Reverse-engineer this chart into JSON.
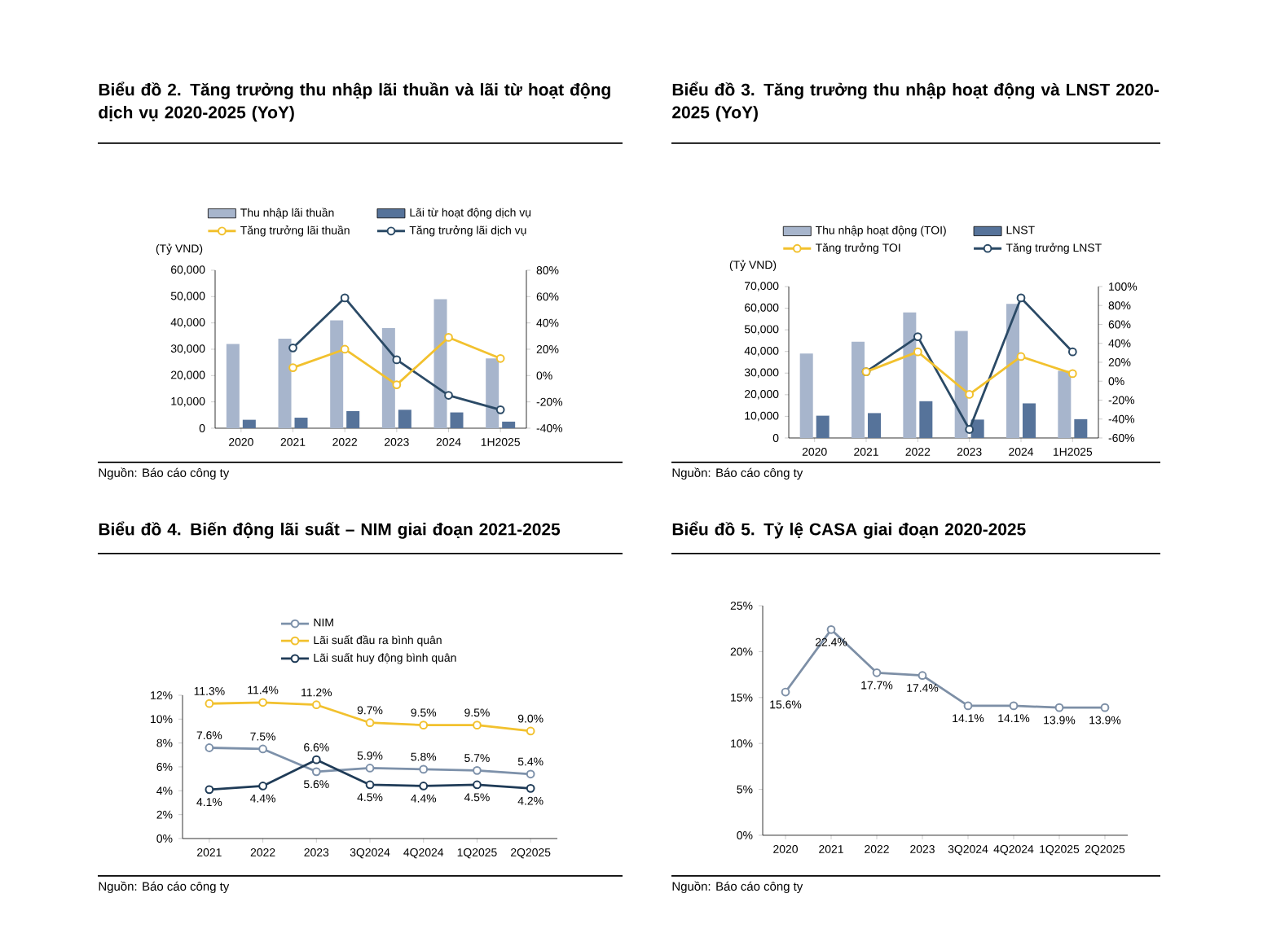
{
  "chart_data": [
    {
      "type": "bar",
      "title": "Biểu đồ 2. Tăng trưởng thu nhập lãi thuần và lãi từ hoạt động dịch vụ 2020-2025 (YoY)",
      "ylabel": "(Tỷ VND)",
      "categories": [
        "2020",
        "2021",
        "2022",
        "2023",
        "2024",
        "1H2025"
      ],
      "series": [
        {
          "name": "Thu nhập lãi thuần",
          "color": "#a7b5cc",
          "values": [
            32000,
            34000,
            41000,
            38000,
            49000,
            26500
          ]
        },
        {
          "name": "Lãi từ hoạt động dịch vụ",
          "color": "#56739a",
          "values": [
            3200,
            4000,
            6500,
            7000,
            6000,
            2500
          ]
        },
        {
          "name": "Tăng trưởng lãi thuần",
          "type": "line",
          "axis": "y2",
          "color": "#f2c12e",
          "values": [
            null,
            6,
            20,
            -7,
            29,
            13
          ]
        },
        {
          "name": "Tăng trưởng lãi dịch vụ",
          "type": "line",
          "axis": "y2",
          "color": "#2b4a66",
          "values": [
            null,
            21,
            59,
            12,
            -15,
            -26
          ]
        }
      ],
      "ylim": [
        0,
        60000
      ],
      "yticks": [
        0,
        {
          "value": 10000,
          "label": "10,000"
        },
        {
          "value": 20000,
          "label": "20,000"
        },
        {
          "value": 30000,
          "label": "30,000"
        },
        {
          "value": 40000,
          "label": "40,000"
        },
        {
          "value": 50000,
          "label": "50,000"
        },
        {
          "value": 60000,
          "label": "60,000"
        }
      ],
      "y2lim": [
        -40,
        80
      ],
      "y2ticks": [
        {
          "value": -40,
          "label": "-40%"
        },
        {
          "value": -20,
          "label": "-20%"
        },
        {
          "value": 0,
          "label": "0%"
        },
        {
          "value": 20,
          "label": "20%"
        },
        {
          "value": 40,
          "label": "40%"
        },
        {
          "value": 60,
          "label": "60%"
        },
        {
          "value": 80,
          "label": "80%"
        }
      ],
      "legend": "top",
      "marker": "circle",
      "annotations": [
        "Nguồn: Báo cáo công ty"
      ]
    },
    {
      "type": "bar",
      "title": "Biểu đồ 3. Tăng trưởng thu nhập hoạt động và LNST 2020-2025 (YoY)",
      "ylabel": "(Tỷ VND)",
      "categories": [
        "2020",
        "2021",
        "2022",
        "2023",
        "2024",
        "1H2025"
      ],
      "series": [
        {
          "name": "Thu nhập hoạt động (TOI)",
          "color": "#a7b5cc",
          "values": [
            39000,
            44500,
            58000,
            49500,
            62000,
            31000
          ]
        },
        {
          "name": "LNST",
          "color": "#56739a",
          "values": [
            10300,
            11500,
            17000,
            8500,
            16000,
            8700
          ]
        },
        {
          "name": "Tăng trưởng TOI",
          "type": "line",
          "axis": "y2",
          "color": "#f2c12e",
          "values": [
            null,
            10,
            31,
            -14,
            26,
            8
          ]
        },
        {
          "name": "Tăng trưởng LNST",
          "type": "line",
          "axis": "y2",
          "color": "#2b4a66",
          "values": [
            null,
            10,
            47,
            -51,
            88,
            31
          ]
        }
      ],
      "ylim": [
        0,
        70000
      ],
      "yticks": [
        0,
        {
          "value": 10000,
          "label": "10,000"
        },
        {
          "value": 20000,
          "label": "20,000"
        },
        {
          "value": 30000,
          "label": "30,000"
        },
        {
          "value": 40000,
          "label": "40,000"
        },
        {
          "value": 50000,
          "label": "50,000"
        },
        {
          "value": 60000,
          "label": "60,000"
        },
        {
          "value": 70000,
          "label": "70,000"
        }
      ],
      "y2lim": [
        -60,
        100
      ],
      "y2ticks": [
        {
          "value": -60,
          "label": "-60%"
        },
        {
          "value": -40,
          "label": "-40%"
        },
        {
          "value": -20,
          "label": "-20%"
        },
        {
          "value": 0,
          "label": "0%"
        },
        {
          "value": 20,
          "label": "20%"
        },
        {
          "value": 40,
          "label": "40%"
        },
        {
          "value": 60,
          "label": "60%"
        },
        {
          "value": 80,
          "label": "80%"
        },
        {
          "value": 100,
          "label": "100%"
        }
      ],
      "legend": "top",
      "marker": "circle",
      "annotations": [
        "Nguồn: Báo cáo công ty"
      ]
    },
    {
      "type": "line",
      "title": "Biểu đồ 4. Biến động lãi suất – NIM giai đoạn 2021-2025",
      "categories": [
        "2021",
        "2022",
        "2023",
        "3Q2024",
        "4Q2024",
        "1Q2025",
        "2Q2025"
      ],
      "series": [
        {
          "name": "NIM",
          "color": "#7d91aa",
          "values": [
            7.6,
            7.5,
            5.6,
            5.9,
            5.8,
            5.7,
            5.4
          ],
          "value_labels": [
            "7.6%",
            "7.5%",
            "5.6%",
            "5.9%",
            "5.8%",
            "5.7%",
            "5.4%"
          ]
        },
        {
          "name": "Lãi suất đầu ra bình quân",
          "color": "#f2c12e",
          "values": [
            11.3,
            11.4,
            11.2,
            9.7,
            9.5,
            9.5,
            9.0
          ],
          "value_labels": [
            "11.3%",
            "11.4%",
            "11.2%",
            "9.7%",
            "9.5%",
            "9.5%",
            "9.0%"
          ]
        },
        {
          "name": "Lãi suất huy động bình quân",
          "color": "#1f3b57",
          "values": [
            4.1,
            4.4,
            6.6,
            4.5,
            4.4,
            4.5,
            4.2
          ],
          "value_labels": [
            "4.1%",
            "4.4%",
            "6.6%",
            "4.5%",
            "4.4%",
            "4.5%",
            "4.2%"
          ]
        }
      ],
      "ylim": [
        0,
        12
      ],
      "yticks": [
        {
          "value": 0,
          "label": "0%"
        },
        {
          "value": 2,
          "label": "2%"
        },
        {
          "value": 4,
          "label": "4%"
        },
        {
          "value": 6,
          "label": "6%"
        },
        {
          "value": 8,
          "label": "8%"
        },
        {
          "value": 10,
          "label": "10%"
        },
        {
          "value": 12,
          "label": "12%"
        }
      ],
      "legend": "top",
      "marker": "circle",
      "annotations": [
        "Nguồn: Báo cáo công ty"
      ]
    },
    {
      "type": "line",
      "title": "Biểu đồ 5. Tỷ lệ CASA giai đoạn 2020-2025",
      "categories": [
        "2020",
        "2021",
        "2022",
        "2023",
        "3Q2024",
        "4Q2024",
        "1Q2025",
        "2Q2025"
      ],
      "series": [
        {
          "color": "#7d8fa6",
          "values": [
            15.6,
            22.4,
            17.7,
            17.4,
            14.1,
            14.1,
            13.9,
            13.9
          ],
          "value_labels": [
            "15.6%",
            "22.4%",
            "17.7%",
            "17.4%",
            "14.1%",
            "14.1%",
            "13.9%",
            "13.9%"
          ]
        }
      ],
      "ylim": [
        0,
        25
      ],
      "yticks": [
        {
          "value": 0,
          "label": "0%"
        },
        {
          "value": 5,
          "label": "5%"
        },
        {
          "value": 10,
          "label": "10%"
        },
        {
          "value": 15,
          "label": "15%"
        },
        {
          "value": 20,
          "label": "20%"
        },
        {
          "value": 25,
          "label": "25%"
        }
      ],
      "marker": "circle",
      "annotations": [
        "Nguồn: Báo cáo công ty"
      ]
    }
  ]
}
